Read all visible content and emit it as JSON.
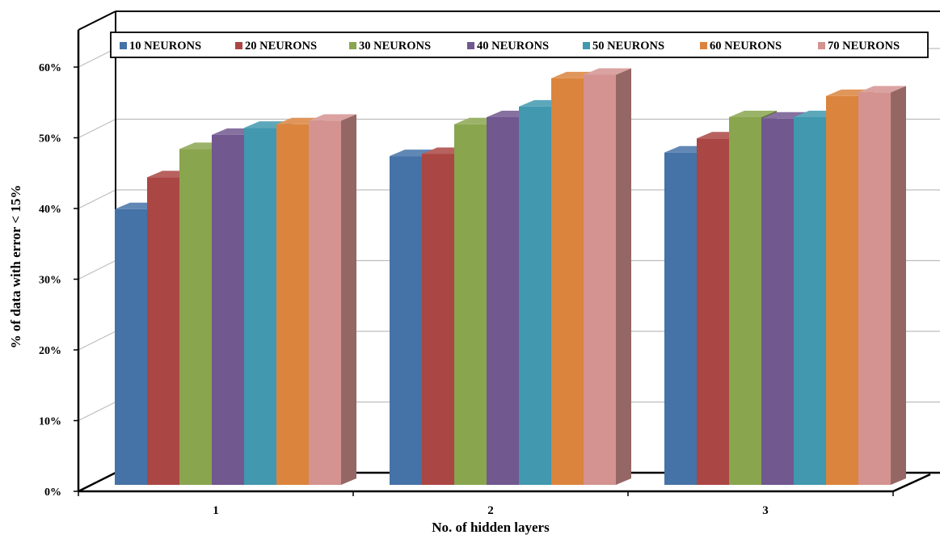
{
  "chart_data": {
    "type": "bar",
    "title": "",
    "xlabel": "No. of hidden layers",
    "ylabel": "% of data with error < 15%",
    "categories": [
      "1",
      "2",
      "3"
    ],
    "ylim": [
      0,
      60
    ],
    "yticks": [
      "0%",
      "10%",
      "20%",
      "30%",
      "40%",
      "50%",
      "60%"
    ],
    "grid": true,
    "style": "3d-clustered-column",
    "legend": {
      "position": "top",
      "border": true
    },
    "series": [
      {
        "name": "10 NEURONS",
        "color": "#4572A7",
        "values": [
          39.0,
          46.5,
          47.0
        ]
      },
      {
        "name": "20 NEURONS",
        "color": "#AA4643",
        "values": [
          43.5,
          46.8,
          49.0
        ]
      },
      {
        "name": "30 NEURONS",
        "color": "#89A54E",
        "values": [
          47.5,
          51.0,
          52.0
        ]
      },
      {
        "name": "40 NEURONS",
        "color": "#71588F",
        "values": [
          49.5,
          52.0,
          51.8
        ]
      },
      {
        "name": "50 NEURONS",
        "color": "#4198AF",
        "values": [
          50.5,
          53.5,
          52.0
        ]
      },
      {
        "name": "60 NEURONS",
        "color": "#DB843D",
        "values": [
          51.0,
          57.5,
          55.0
        ]
      },
      {
        "name": "70 NEURONS",
        "color": "#D49390",
        "values": [
          51.5,
          58.0,
          55.5
        ]
      }
    ]
  }
}
